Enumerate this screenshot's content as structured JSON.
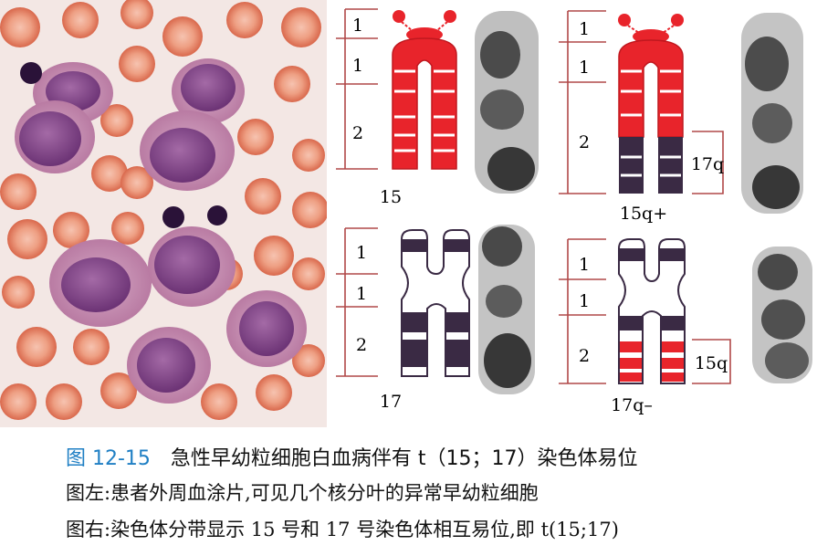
{
  "caption": {
    "figure_number": "图 12-15",
    "title": "急性早幼粒细胞白血病伴有 t（15；17）染色体易位",
    "line_left": "图左:患者外周血涂片,可见几个核分叶的异常早幼粒细胞",
    "line_right": "图右:染色体分带显示 15 号和 17 号染色体相互易位,即 t(15;17)"
  },
  "ideograms": {
    "chr15": {
      "label": "15",
      "region_labels": [
        "1",
        "1",
        "2"
      ]
    },
    "chr15q": {
      "label": "15q+",
      "region_labels": [
        "1",
        "1",
        "2"
      ],
      "translocated_segment": "17q"
    },
    "chr17": {
      "label": "17",
      "region_labels": [
        "1",
        "1",
        "2"
      ]
    },
    "chr17q": {
      "label": "17q–",
      "region_labels": [
        "1",
        "1",
        "2"
      ],
      "translocated_segment": "15q"
    }
  },
  "colors": {
    "chr15_band": "#e8242b",
    "chr17_band": "#3a2a44",
    "bracket": "#b04848",
    "caption_number": "#1f7fc4",
    "smear_background": "#f3e7e4",
    "rbc": "#e68a6c",
    "nucleus": "#8b4d8f",
    "cytoplasm": "#c98fb4"
  }
}
